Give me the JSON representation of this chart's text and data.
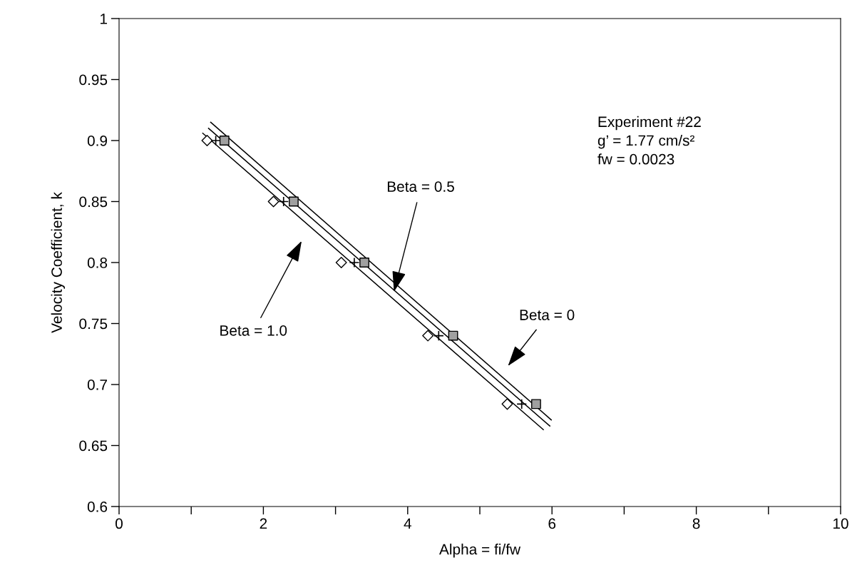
{
  "chart_data": {
    "type": "scatter",
    "xlabel": "Alpha = fi/fw",
    "ylabel": "Velocity Coefficient, k",
    "xlim": [
      0,
      10
    ],
    "xticks": [
      0,
      {
        "value": 1,
        "label": null
      },
      2,
      {
        "value": 3,
        "label": null
      },
      4,
      {
        "value": 5,
        "label": null
      },
      6,
      {
        "value": 7,
        "label": null
      },
      8,
      {
        "value": 9,
        "label": null
      },
      10
    ],
    "ylim": [
      0.6,
      1
    ],
    "yticks": [
      0.6,
      0.65,
      0.7,
      0.75,
      0.8,
      0.85,
      0.9,
      0.95,
      1
    ],
    "grid": false,
    "series": [
      {
        "marker": "diamond",
        "color": "#ffffff",
        "x": [
          1.22,
          2.14,
          3.08,
          4.28,
          5.38
        ],
        "values": [
          0.9,
          0.85,
          0.8,
          0.74,
          0.684
        ]
      },
      {
        "marker": "cross",
        "color": "#000000",
        "x": [
          1.34,
          2.28,
          3.26,
          4.43,
          5.58
        ],
        "values": [
          0.9,
          0.85,
          0.8,
          0.74,
          0.684
        ]
      },
      {
        "marker": "square",
        "color": "#a0a0a0",
        "x": [
          1.46,
          2.42,
          3.4,
          4.63,
          5.78
        ],
        "values": [
          0.9,
          0.85,
          0.8,
          0.74,
          0.684
        ]
      },
      {
        "type": "line",
        "marker": "none",
        "color": "#000000",
        "x": [
          1.27,
          5.99
        ],
        "values": [
          0.915,
          0.671
        ]
      },
      {
        "type": "line",
        "marker": "none",
        "color": "#000000",
        "x": [
          1.24,
          5.97
        ],
        "values": [
          0.91,
          0.666
        ]
      },
      {
        "type": "line",
        "marker": "none",
        "color": "#000000",
        "x": [
          1.16,
          5.88
        ],
        "values": [
          0.906,
          0.663
        ]
      }
    ],
    "annotations": [
      {
        "text": "Beta = 0.5",
        "x": 3.81,
        "y": 0.776
      },
      "Beta = 0",
      "Beta = 1.0",
      "Experiment #22\ng’ = 1.77 cm/s²\nfw = 0.0023"
    ]
  }
}
